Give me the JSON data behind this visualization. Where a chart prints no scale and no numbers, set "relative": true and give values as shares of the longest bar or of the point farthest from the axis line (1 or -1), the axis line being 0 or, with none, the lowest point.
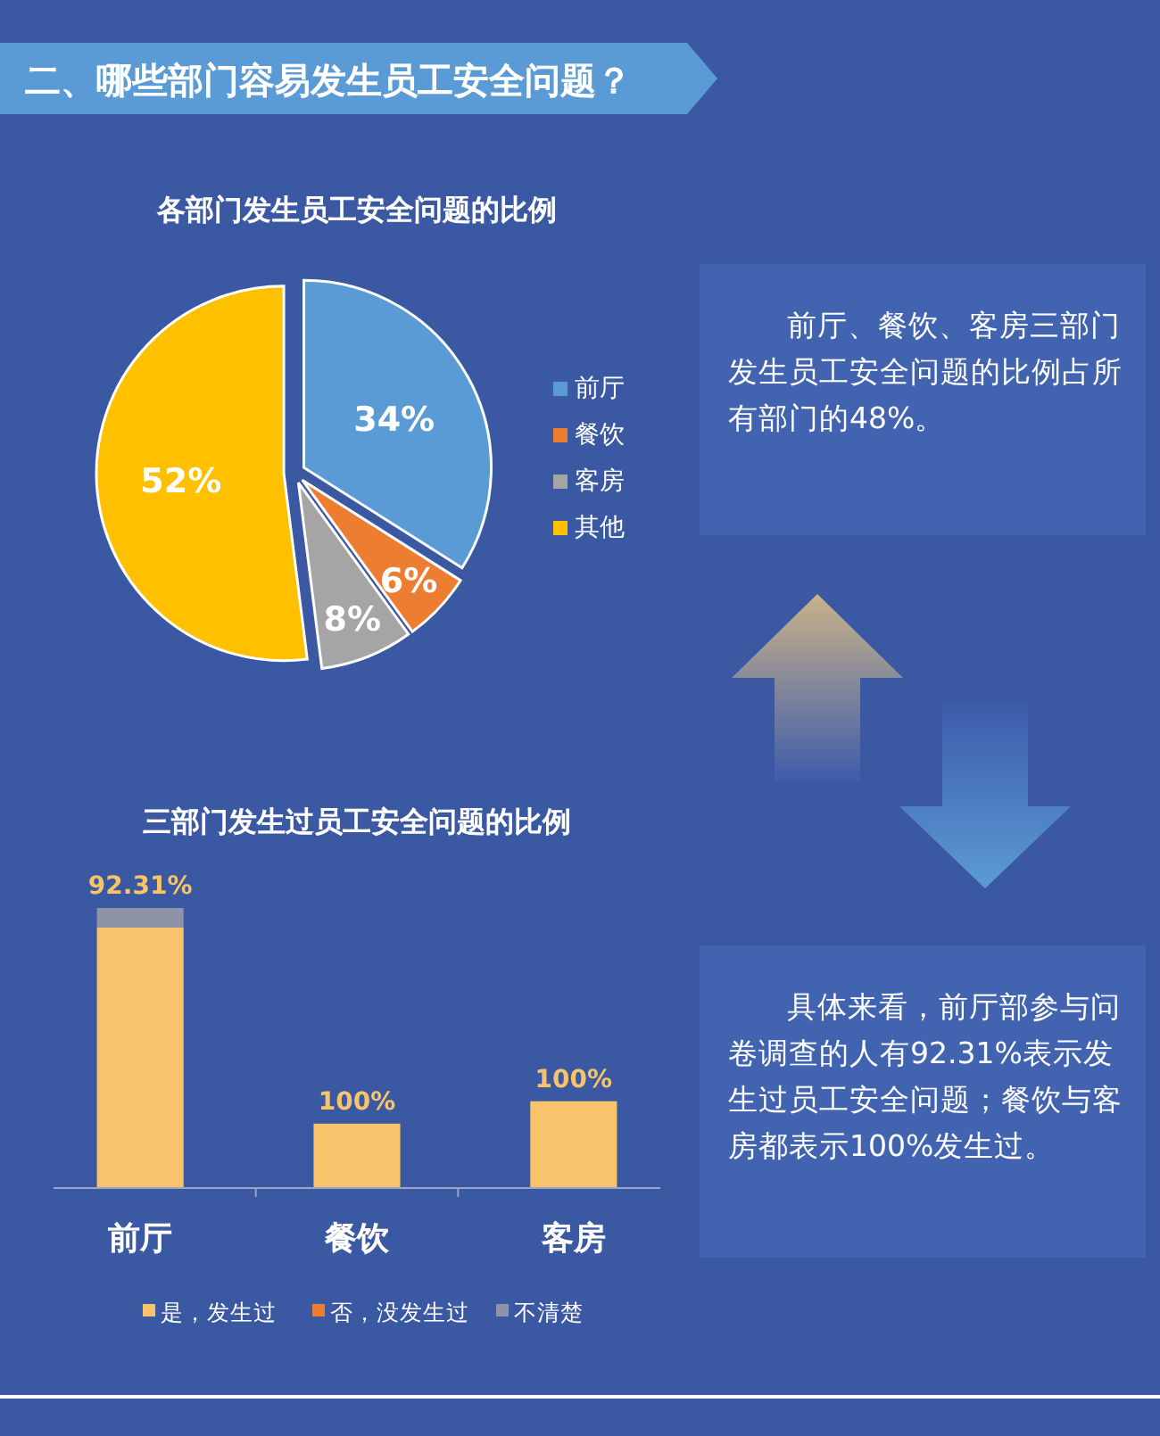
{
  "chart_data": [
    {
      "type": "other",
      "title": "二、哪些部门容易发生员工安全问题？"
    },
    {
      "type": "pie",
      "title": "各部门发生员工安全问题的比例",
      "categories": [
        "前厅",
        "餐饮",
        "客房",
        "其他"
      ],
      "values": [
        34,
        6,
        8,
        52
      ],
      "value_labels": [
        "34%",
        "6%",
        "8%",
        "52%"
      ],
      "colors": [
        "#5b9bd5",
        "#ed7d31",
        "#a5a5a5",
        "#ffc000"
      ],
      "legend": "right"
    },
    {
      "type": "other",
      "annotations": [
        "前厅、餐饮、客房三部门发生员工安全问题的比例占所有部门的48%。"
      ]
    },
    {
      "type": "bar",
      "title": "三部门发生过员工安全问题的比例",
      "categories": [
        "前厅",
        "餐饮",
        "客房"
      ],
      "relative": true,
      "stacked": true,
      "legend": "bottom",
      "annotations": [
        {
          "text": "92.31%",
          "x": "前厅",
          "y": 1
        },
        {
          "text": "100%",
          "x": "餐饮",
          "y": 0.23
        },
        {
          "text": "100%",
          "x": "客房",
          "y": 0.31
        }
      ],
      "series": [
        {
          "name": "是，发生过",
          "color": "#f7c46c",
          "values": [
            0.93,
            0.23,
            0.31
          ]
        },
        {
          "name": "否，没发生过",
          "color": "#ed7d31",
          "values": [
            null,
            null,
            null
          ]
        },
        {
          "name": "不清楚",
          "color": "#8e93a8",
          "values": [
            0.07,
            null,
            null
          ]
        }
      ]
    },
    {
      "type": "other",
      "annotations": [
        "具体来看，前厅部参与问卷调查的人有92.31%表示发生过员工安全问题；餐饮与客房都表示100%发生过。"
      ]
    }
  ]
}
